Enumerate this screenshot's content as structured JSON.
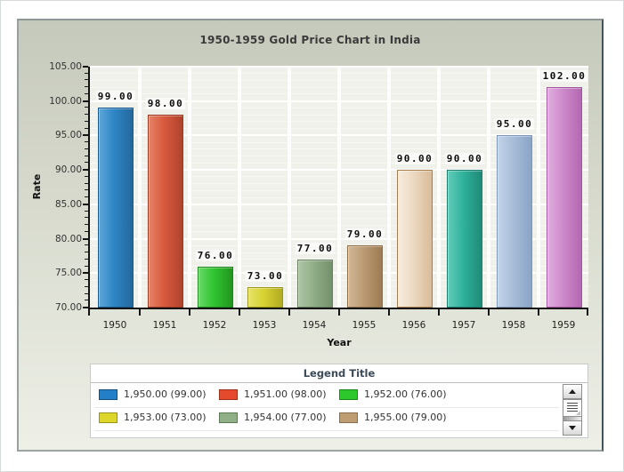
{
  "chart_data": {
    "type": "bar",
    "title": "1950-1959 Gold Price Chart in India",
    "xlabel": "Year",
    "ylabel": "Rate",
    "categories": [
      "1950",
      "1951",
      "1952",
      "1953",
      "1954",
      "1955",
      "1956",
      "1957",
      "1958",
      "1959"
    ],
    "values": [
      99,
      98,
      76,
      73,
      77,
      79,
      90,
      90,
      95,
      102
    ],
    "value_labels": [
      "99.00",
      "98.00",
      "76.00",
      "73.00",
      "77.00",
      "79.00",
      "90.00",
      "90.00",
      "95.00",
      "102.00"
    ],
    "ylim": [
      70,
      105
    ],
    "ytick_step": 5,
    "ytick_labels": [
      "105.00",
      "100.00",
      "95.00",
      "90.00",
      "85.00",
      "80.00",
      "75.00",
      "70.00"
    ],
    "grid": true,
    "legend_position": "bottom",
    "bar_colors": [
      {
        "light": "#5ea7d8",
        "base": "#2e85c5",
        "dark": "#23689c",
        "border": "#1b5a8c"
      },
      {
        "light": "#e58266",
        "base": "#d85a3e",
        "dark": "#b0432c",
        "border": "#9c3a24"
      },
      {
        "light": "#66d966",
        "base": "#31c431",
        "dark": "#22951f",
        "border": "#1d871d"
      },
      {
        "light": "#e6e268",
        "base": "#d8d232",
        "dark": "#b1ab22",
        "border": "#9d981c"
      },
      {
        "light": "#aec6a7",
        "base": "#90ae88",
        "dark": "#74906b",
        "border": "#677f5f"
      },
      {
        "light": "#d2b897",
        "base": "#bc9b74",
        "dark": "#9c7b52",
        "border": "#8d6f4a"
      },
      {
        "light": "#f7ecdd",
        "base": "#ecd9c2",
        "dark": "#d9bb99",
        "border": "#a97e52"
      },
      {
        "light": "#63cab8",
        "base": "#2fb29c",
        "dark": "#1f8a78",
        "border": "#1b7e6e"
      },
      {
        "light": "#c3d3e8",
        "base": "#a8bdd9",
        "dark": "#8aa3c6",
        "border": "#7d96ba"
      },
      {
        "light": "#e0aede",
        "base": "#cd8acb",
        "dark": "#b468b1",
        "border": "#a0559c"
      }
    ]
  },
  "legend": {
    "title": "Legend Title",
    "entries": [
      {
        "label": "1,950.00 (99.00)",
        "color": "#2380c8",
        "border": "#174f80"
      },
      {
        "label": "1,951.00 (98.00)",
        "color": "#e64a2c",
        "border": "#9e3118"
      },
      {
        "label": "1,952.00 (76.00)",
        "color": "#2cc82c",
        "border": "#1d8a1d"
      },
      {
        "label": "1,953.00 (73.00)",
        "color": "#ddd72c",
        "border": "#98941c"
      },
      {
        "label": "1,954.00 (77.00)",
        "color": "#8fb087",
        "border": "#5f7a57"
      },
      {
        "label": "1,955.00 (79.00)",
        "color": "#bf9d72",
        "border": "#8a6f4e"
      }
    ],
    "scrollbar": {
      "up_icon": "up-arrow",
      "down_icon": "down-arrow",
      "thumb_icon": "page-grip"
    }
  },
  "colors": {
    "panel_background_top": "#c5c9bb",
    "panel_background_bottom": "#eef0e8",
    "plot_background": "#f0f1ea",
    "axis": "#141414",
    "title_text": "#3a3a3a"
  }
}
